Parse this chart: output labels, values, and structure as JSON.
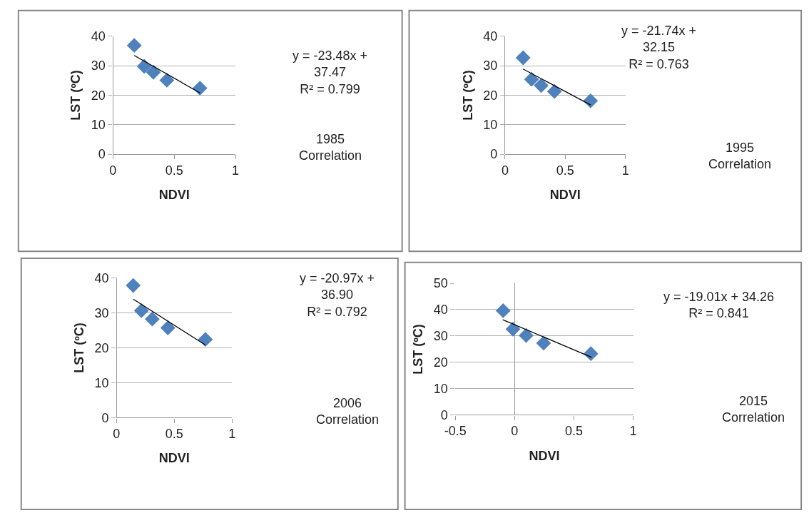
{
  "chart_data": [
    {
      "type": "scatter",
      "xlabel": "NDVI",
      "ylabel": "LST (ºC)",
      "xlim": [
        0,
        1
      ],
      "xticks": [
        0,
        0.5,
        1
      ],
      "ylim": [
        0,
        40
      ],
      "yticks": [
        0,
        10,
        20,
        30,
        40
      ],
      "grid": "y",
      "series": [
        {
          "color": "#4f81bd",
          "marker": "diamond",
          "x": [
            0.174,
            0.255,
            0.33,
            0.44,
            0.71
          ],
          "values": [
            36.9,
            29.8,
            27.8,
            25.1,
            22.4
          ]
        },
        {
          "type": "line",
          "marker": "none",
          "color": "#000000",
          "x": [
            0.174,
            0.71
          ],
          "values": [
            33.5,
            20.8
          ]
        }
      ],
      "annotations": [
        "y = -23.48x +\n37.47\nR² = 0.799",
        "1985\nCorrelation"
      ]
    },
    {
      "type": "scatter",
      "xlabel": "NDVI",
      "ylabel": "LST (ºC)",
      "xlim": [
        0,
        1
      ],
      "xticks": [
        0,
        0.5,
        1
      ],
      "ylim": [
        0,
        40
      ],
      "yticks": [
        0,
        10,
        20,
        30,
        40
      ],
      "grid": "y",
      "series": [
        {
          "color": "#4f81bd",
          "marker": "diamond",
          "x": [
            0.15,
            0.22,
            0.3,
            0.41,
            0.71
          ],
          "values": [
            32.7,
            25.4,
            23.3,
            21.3,
            18.1
          ]
        },
        {
          "type": "line",
          "marker": "none",
          "color": "#000000",
          "x": [
            0.15,
            0.71
          ],
          "values": [
            28.9,
            16.7
          ]
        }
      ],
      "annotations": [
        "y = -21.74x +\n32.15\nR² = 0.763",
        "1995\nCorrelation"
      ]
    },
    {
      "type": "scatter",
      "xlabel": "NDVI",
      "ylabel": "LST (ºC)",
      "xlim": [
        0,
        1
      ],
      "xticks": [
        0,
        0.5,
        1
      ],
      "ylim": [
        0,
        40
      ],
      "yticks": [
        0,
        10,
        20,
        30,
        40
      ],
      "grid": "y",
      "series": [
        {
          "color": "#4f81bd",
          "marker": "diamond",
          "x": [
            0.145,
            0.216,
            0.31,
            0.445,
            0.77
          ],
          "values": [
            37.8,
            30.6,
            28.2,
            25.7,
            22.4
          ]
        },
        {
          "type": "line",
          "marker": "none",
          "color": "#000000",
          "x": [
            0.145,
            0.77
          ],
          "values": [
            33.9,
            20.8
          ]
        }
      ],
      "annotations": [
        "y = -20.97x +\n36.90\nR² = 0.792",
        "2006\nCorrelation"
      ]
    },
    {
      "type": "scatter",
      "xlabel": "NDVI",
      "ylabel": "LST (ºC)",
      "xlim": [
        -0.5,
        1
      ],
      "xticks": [
        -0.5,
        0,
        0.5,
        1
      ],
      "ylim": [
        0,
        50
      ],
      "yticks": [
        0,
        10,
        20,
        30,
        40,
        50
      ],
      "grid": "y",
      "series": [
        {
          "color": "#4f81bd",
          "marker": "diamond",
          "x": [
            -0.097,
            -0.014,
            0.097,
            0.244,
            0.643
          ],
          "values": [
            39.6,
            32.6,
            30.2,
            27.3,
            23.3
          ]
        },
        {
          "type": "line",
          "marker": "none",
          "color": "#000000",
          "x": [
            -0.1,
            0.65
          ],
          "values": [
            36.2,
            21.9
          ]
        }
      ],
      "annotations": [
        "y = -19.01x + 34.26\nR² = 0.841",
        "2015\nCorrelation"
      ]
    }
  ]
}
